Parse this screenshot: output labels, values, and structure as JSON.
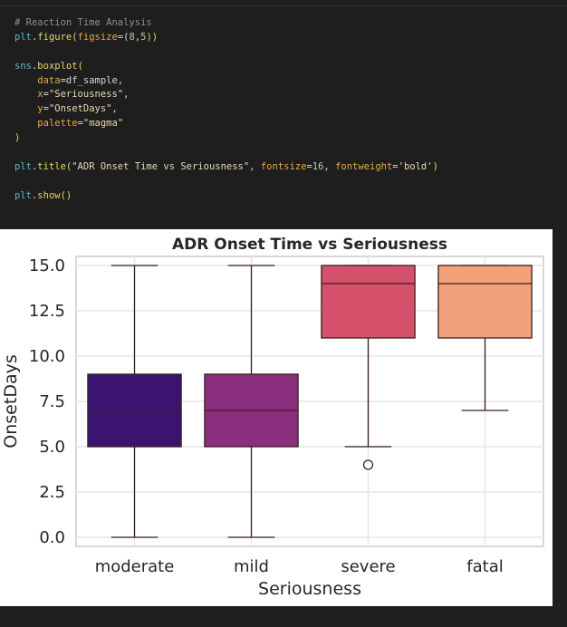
{
  "code_cell": {
    "lines": [
      [
        {
          "t": "# Reaction Time Analysis",
          "c": "comment"
        }
      ],
      [
        {
          "t": "plt",
          "c": "var"
        },
        {
          "t": ".",
          "c": "plain"
        },
        {
          "t": "figure",
          "c": "fn"
        },
        {
          "t": "(",
          "c": "fn"
        },
        {
          "t": "figsize",
          "c": "kw"
        },
        {
          "t": "=(",
          "c": "plain"
        },
        {
          "t": "8",
          "c": "num"
        },
        {
          "t": ",",
          "c": "plain"
        },
        {
          "t": "5",
          "c": "num"
        },
        {
          "t": "))",
          "c": "fn"
        }
      ],
      [],
      [
        {
          "t": "sns",
          "c": "var"
        },
        {
          "t": ".",
          "c": "plain"
        },
        {
          "t": "boxplot",
          "c": "fn"
        },
        {
          "t": "(",
          "c": "fn"
        }
      ],
      [
        {
          "t": "    ",
          "c": "plain"
        },
        {
          "t": "data",
          "c": "kw"
        },
        {
          "t": "=",
          "c": "plain"
        },
        {
          "t": "df_sample",
          "c": "plain"
        },
        {
          "t": ",",
          "c": "plain"
        }
      ],
      [
        {
          "t": "    ",
          "c": "plain"
        },
        {
          "t": "x",
          "c": "kw"
        },
        {
          "t": "=",
          "c": "plain"
        },
        {
          "t": "\"Seriousness\"",
          "c": "str"
        },
        {
          "t": ",",
          "c": "plain"
        }
      ],
      [
        {
          "t": "    ",
          "c": "plain"
        },
        {
          "t": "y",
          "c": "kw"
        },
        {
          "t": "=",
          "c": "plain"
        },
        {
          "t": "\"OnsetDays\"",
          "c": "str"
        },
        {
          "t": ",",
          "c": "plain"
        }
      ],
      [
        {
          "t": "    ",
          "c": "plain"
        },
        {
          "t": "palette",
          "c": "kw"
        },
        {
          "t": "=",
          "c": "plain"
        },
        {
          "t": "\"magma\"",
          "c": "str"
        }
      ],
      [
        {
          "t": ")",
          "c": "fn"
        }
      ],
      [],
      [
        {
          "t": "plt",
          "c": "var"
        },
        {
          "t": ".",
          "c": "plain"
        },
        {
          "t": "title",
          "c": "fn"
        },
        {
          "t": "(",
          "c": "fn"
        },
        {
          "t": "\"ADR Onset Time vs Seriousness\"",
          "c": "str"
        },
        {
          "t": ", ",
          "c": "plain"
        },
        {
          "t": "fontsize",
          "c": "kw"
        },
        {
          "t": "=",
          "c": "plain"
        },
        {
          "t": "16",
          "c": "num"
        },
        {
          "t": ", ",
          "c": "plain"
        },
        {
          "t": "fontweight",
          "c": "kw"
        },
        {
          "t": "=",
          "c": "plain"
        },
        {
          "t": "'bold'",
          "c": "str"
        },
        {
          "t": ")",
          "c": "fn"
        }
      ],
      [],
      [
        {
          "t": "plt",
          "c": "var"
        },
        {
          "t": ".",
          "c": "plain"
        },
        {
          "t": "show",
          "c": "fn"
        },
        {
          "t": "()",
          "c": "fn"
        }
      ]
    ]
  },
  "colors": {
    "comment": "#8a8f98",
    "var": "#5fb3d4",
    "fn": "#e6d66a",
    "kw": "#e3a849",
    "str": "#e8d8b0",
    "num": "#b5cea8",
    "plain": "#d4d4d4"
  },
  "chart_data": {
    "type": "box",
    "title": "ADR Onset Time vs Seriousness",
    "xlabel": "Seriousness",
    "ylabel": "OnsetDays",
    "ylim": [
      -0.5,
      15.5
    ],
    "yticks": [
      0.0,
      2.5,
      5.0,
      7.5,
      10.0,
      12.5,
      15.0
    ],
    "ytick_labels": [
      "0.0",
      "2.5",
      "5.0",
      "7.5",
      "10.0",
      "12.5",
      "15.0"
    ],
    "grid": true,
    "categories": [
      "moderate",
      "mild",
      "severe",
      "fatal"
    ],
    "boxes": [
      {
        "category": "moderate",
        "whislo": 0,
        "q1": 5,
        "median": 7,
        "q3": 9,
        "whishi": 15,
        "fliers": [],
        "color": "#3b1470"
      },
      {
        "category": "mild",
        "whislo": 0,
        "q1": 5,
        "median": 7,
        "q3": 9,
        "whishi": 15,
        "fliers": [],
        "color": "#8a2f7d"
      },
      {
        "category": "severe",
        "whislo": 5,
        "q1": 11,
        "median": 14,
        "q3": 15,
        "whishi": 15,
        "fliers": [
          4
        ],
        "color": "#d6526c"
      },
      {
        "category": "fatal",
        "whislo": 7,
        "q1": 11,
        "median": 14,
        "q3": 15,
        "whishi": 15,
        "fliers": [],
        "color": "#f2a27a"
      }
    ]
  }
}
